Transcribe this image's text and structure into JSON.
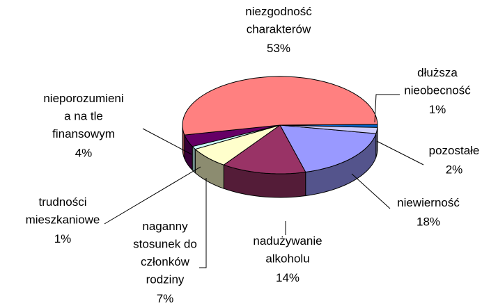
{
  "chart_data": {
    "type": "pie3d",
    "categories": [
      "niewierność",
      "nadużywanie\nalkoholu",
      "naganny\nstosunek do\nczłonków\nrodziny",
      "trudności\nmieszkaniowe",
      "nieporozumieni\na na tle\nfinansowym",
      "niezgodność\ncharakterów",
      "dłuższa\nnieobecność",
      "pozostałe"
    ],
    "values": [
      18,
      14,
      7,
      1,
      4,
      53,
      1,
      2
    ],
    "value_labels": [
      "18%",
      "14%",
      "7%",
      "1%",
      "4%",
      "53%",
      "1%",
      "2%"
    ],
    "colors": [
      "#9999ff",
      "#993366",
      "#ffffcc",
      "#ccffff",
      "#660066",
      "#ff8080",
      "#0066cc",
      "#ccccff"
    ]
  }
}
